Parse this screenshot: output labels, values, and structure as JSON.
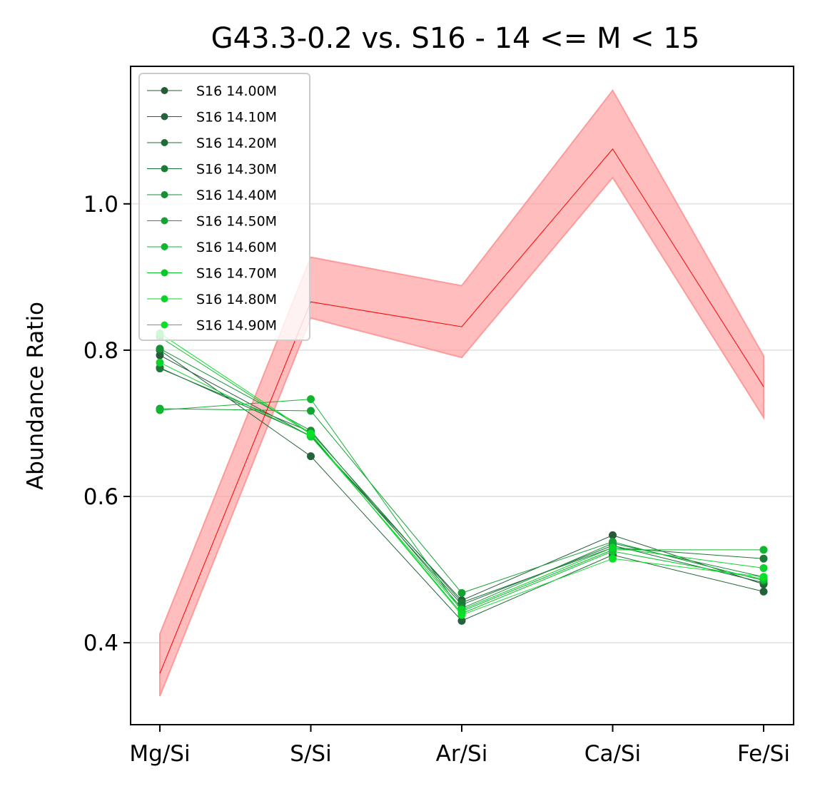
{
  "chart_data": {
    "type": "line",
    "title": "G43.3-0.2 vs. S16 - 14 <= M < 15",
    "xlabel": "",
    "ylabel": "Abundance Ratio",
    "categories": [
      "Mg/Si",
      "S/Si",
      "Ar/Si",
      "Ca/Si",
      "Fe/Si"
    ],
    "ylim": [
      0.288,
      1.188
    ],
    "yticks": [
      0.4,
      0.6,
      0.8,
      1.0
    ],
    "ytick_labels": [
      "0.4",
      "0.6",
      "0.8",
      "1.0"
    ],
    "grid": "horizontal",
    "legend_position": "upper-left",
    "observed": {
      "name": "G43.3-0.2",
      "color": "#ff0000",
      "band_color": "#ff9a9a",
      "values": [
        0.358,
        0.866,
        0.832,
        1.075,
        0.75
      ],
      "lower": [
        0.327,
        0.844,
        0.79,
        1.036,
        0.708
      ],
      "upper": [
        0.412,
        0.927,
        0.888,
        1.155,
        0.792
      ]
    },
    "series": [
      {
        "name": "S16 14.00M",
        "color": "#275b37",
        "values": [
          0.793,
          0.682,
          0.458,
          0.547,
          0.48
        ]
      },
      {
        "name": "S16 14.10M",
        "color": "#23633a",
        "values": [
          0.8,
          0.655,
          0.43,
          0.52,
          0.47
        ]
      },
      {
        "name": "S16 14.20M",
        "color": "#1f6b3a",
        "values": [
          0.776,
          0.683,
          0.452,
          0.533,
          0.482
        ]
      },
      {
        "name": "S16 14.30M",
        "color": "#1b7a38",
        "values": [
          0.775,
          0.688,
          0.455,
          0.53,
          0.515
        ]
      },
      {
        "name": "S16 14.40M",
        "color": "#178f35",
        "values": [
          0.802,
          0.69,
          0.447,
          0.536,
          0.49
        ]
      },
      {
        "name": "S16 14.50M",
        "color": "#13a332",
        "values": [
          0.72,
          0.717,
          0.468,
          0.538,
          0.485
        ]
      },
      {
        "name": "S16 14.60M",
        "color": "#10b530",
        "values": [
          0.718,
          0.733,
          0.443,
          0.527,
          0.527
        ]
      },
      {
        "name": "S16 14.70M",
        "color": "#0ec42e",
        "values": [
          0.818,
          0.685,
          0.44,
          0.525,
          0.487
        ]
      },
      {
        "name": "S16 14.80M",
        "color": "#0cd32c",
        "values": [
          0.783,
          0.682,
          0.445,
          0.53,
          0.502
        ]
      },
      {
        "name": "S16 14.90M",
        "color": "#0ae02a",
        "values": [
          0.823,
          0.686,
          0.438,
          0.515,
          0.49
        ]
      }
    ]
  }
}
